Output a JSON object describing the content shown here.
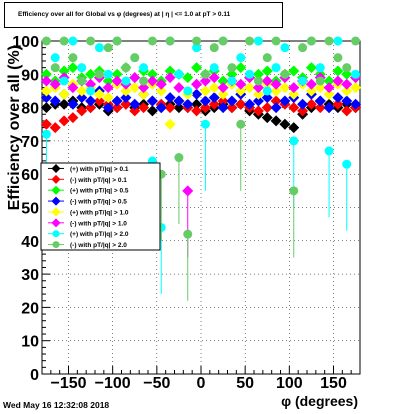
{
  "title": "Efficiency over all for Global vs φ (degrees) at | η | <= 1.0 at pT > 0.11",
  "timestamp": "Wed May 16 12:32:08 2018",
  "chart_data": {
    "type": "scatter",
    "title": "Efficiency over all for Global vs φ (degrees) at | η | <= 1.0 at pT > 0.11",
    "xlabel": "φ (degrees)",
    "ylabel": "Efficiency over all (%)",
    "xlim": [
      -180,
      180
    ],
    "ylim": [
      0,
      100
    ],
    "xticks": [
      -150,
      -100,
      -50,
      0,
      50,
      100,
      150
    ],
    "yticks": [
      0,
      10,
      20,
      30,
      40,
      50,
      60,
      70,
      80,
      90,
      100
    ],
    "grid": true,
    "legend_position": "middle-left",
    "series": [
      {
        "name": "(+) with pT/|q| > 0.1",
        "color": "#000000",
        "marker": "diamond",
        "x": [
          -175,
          -165,
          -155,
          -145,
          -135,
          -125,
          -115,
          -105,
          -95,
          -85,
          -75,
          -65,
          -55,
          -45,
          -35,
          -25,
          -15,
          -5,
          5,
          15,
          25,
          35,
          45,
          55,
          65,
          75,
          85,
          95,
          105,
          115,
          125,
          135,
          145,
          155,
          165,
          175
        ],
        "y": [
          80,
          81,
          81,
          82,
          80,
          80,
          81,
          79,
          80,
          81,
          80,
          81,
          79,
          80,
          81,
          80,
          80,
          81,
          79,
          80,
          81,
          80,
          81,
          79,
          78,
          77,
          76,
          75,
          74,
          78,
          80,
          82,
          81,
          80,
          81,
          80
        ]
      },
      {
        "name": "(-) with pT/|q| > 0.1",
        "color": "#ff0000",
        "marker": "diamond",
        "x": [
          -175,
          -165,
          -155,
          -145,
          -135,
          -125,
          -115,
          -105,
          -95,
          -85,
          -75,
          -65,
          -55,
          -45,
          -35,
          -25,
          -15,
          -5,
          5,
          15,
          25,
          35,
          45,
          55,
          65,
          75,
          85,
          95,
          105,
          115,
          125,
          135,
          145,
          155,
          165,
          175
        ],
        "y": [
          75,
          74,
          76,
          77,
          79,
          80,
          82,
          81,
          80,
          81,
          79,
          80,
          82,
          81,
          80,
          82,
          80,
          79,
          80,
          81,
          82,
          80,
          81,
          80,
          79,
          80,
          82,
          81,
          80,
          79,
          81,
          80,
          80,
          81,
          79,
          80
        ]
      },
      {
        "name": "(+) with pT/|q| > 0.5",
        "color": "#00ff00",
        "marker": "diamond",
        "x": [
          -175,
          -165,
          -155,
          -145,
          -135,
          -125,
          -115,
          -105,
          -95,
          -85,
          -75,
          -65,
          -55,
          -45,
          -35,
          -25,
          -15,
          -5,
          5,
          15,
          25,
          35,
          45,
          55,
          65,
          75,
          85,
          95,
          105,
          115,
          125,
          135,
          145,
          155,
          165,
          175
        ],
        "y": [
          90,
          88,
          91,
          92,
          89,
          90,
          91,
          88,
          90,
          92,
          89,
          91,
          90,
          88,
          91,
          90,
          89,
          92,
          90,
          91,
          88,
          90,
          92,
          89,
          90,
          91,
          88,
          90,
          91,
          89,
          92,
          90,
          88,
          91,
          90,
          89
        ]
      },
      {
        "name": "(-) with pT/|q| > 0.5",
        "color": "#0000ff",
        "marker": "diamond",
        "x": [
          -175,
          -165,
          -155,
          -145,
          -135,
          -125,
          -115,
          -105,
          -95,
          -85,
          -75,
          -65,
          -55,
          -45,
          -35,
          -25,
          -15,
          -5,
          5,
          15,
          25,
          35,
          45,
          55,
          65,
          75,
          85,
          95,
          105,
          115,
          125,
          135,
          145,
          155,
          165,
          175
        ],
        "y": [
          83,
          82,
          84,
          81,
          83,
          82,
          85,
          80,
          82,
          83,
          81,
          84,
          82,
          80,
          83,
          82,
          81,
          84,
          82,
          83,
          80,
          82,
          84,
          81,
          82,
          83,
          80,
          82,
          83,
          81,
          84,
          82,
          80,
          83,
          82,
          81
        ]
      },
      {
        "name": "(+) with pT/|q| > 1.0",
        "color": "#ffff00",
        "marker": "diamond",
        "x": [
          -175,
          -165,
          -155,
          -145,
          -135,
          -125,
          -115,
          -105,
          -95,
          -85,
          -75,
          -65,
          -55,
          -45,
          -35,
          -25,
          -15,
          -5,
          5,
          15,
          25,
          35,
          45,
          55,
          65,
          75,
          85,
          95,
          105,
          115,
          125,
          135,
          145,
          155,
          165,
          175
        ],
        "y": [
          85,
          86,
          84,
          87,
          85,
          86,
          84,
          83,
          87,
          85,
          86,
          84,
          87,
          85,
          75,
          86,
          84,
          87,
          85,
          86,
          84,
          87,
          85,
          86,
          84,
          87,
          85,
          86,
          84,
          87,
          85,
          86,
          84,
          87,
          85,
          86
        ]
      },
      {
        "name": "(-) with pT/|q| > 1.0",
        "color": "#ff00ff",
        "marker": "diamond",
        "x": [
          -175,
          -165,
          -155,
          -145,
          -135,
          -125,
          -115,
          -105,
          -95,
          -85,
          -75,
          -65,
          -55,
          -45,
          -35,
          -25,
          -15,
          -5,
          5,
          15,
          25,
          35,
          45,
          55,
          65,
          75,
          85,
          95,
          105,
          115,
          125,
          135,
          145,
          155,
          165,
          175
        ],
        "y": [
          88,
          87,
          89,
          86,
          88,
          87,
          89,
          86,
          88,
          87,
          89,
          86,
          88,
          87,
          89,
          86,
          55,
          87,
          88,
          89,
          86,
          88,
          87,
          89,
          86,
          88,
          87,
          89,
          86,
          88,
          87,
          89,
          86,
          88,
          87,
          89
        ]
      },
      {
        "name": "(+) with pT/|q| > 2.0",
        "color": "#00ffff",
        "marker": "circle",
        "x": [
          -175,
          -165,
          -155,
          -145,
          -135,
          -125,
          -115,
          -105,
          -95,
          -85,
          -75,
          -65,
          -55,
          -45,
          -35,
          -25,
          -15,
          -5,
          5,
          15,
          25,
          35,
          45,
          55,
          65,
          75,
          85,
          95,
          105,
          115,
          125,
          135,
          145,
          155,
          165,
          175
        ],
        "y": [
          72,
          95,
          88,
          100,
          92,
          85,
          98,
          90,
          100,
          88,
          95,
          92,
          64,
          44,
          100,
          90,
          85,
          98,
          75,
          92,
          100,
          88,
          95,
          90,
          100,
          85,
          92,
          98,
          70,
          88,
          100,
          92,
          67,
          100,
          63,
          90
        ]
      },
      {
        "name": "(-) with pT/|q| > 2.0",
        "color": "#66cc66",
        "marker": "circle",
        "x": [
          -175,
          -165,
          -155,
          -145,
          -135,
          -125,
          -115,
          -105,
          -95,
          -85,
          -75,
          -65,
          -55,
          -45,
          -35,
          -25,
          -15,
          -5,
          5,
          15,
          25,
          35,
          45,
          55,
          65,
          75,
          85,
          95,
          105,
          115,
          125,
          135,
          145,
          155,
          165,
          175
        ],
        "y": [
          100,
          92,
          100,
          95,
          88,
          100,
          90,
          98,
          100,
          92,
          95,
          88,
          100,
          60,
          100,
          65,
          42,
          100,
          90,
          98,
          100,
          92,
          75,
          100,
          88,
          95,
          100,
          90,
          55,
          98,
          100,
          88,
          100,
          95,
          92,
          100
        ]
      }
    ]
  }
}
